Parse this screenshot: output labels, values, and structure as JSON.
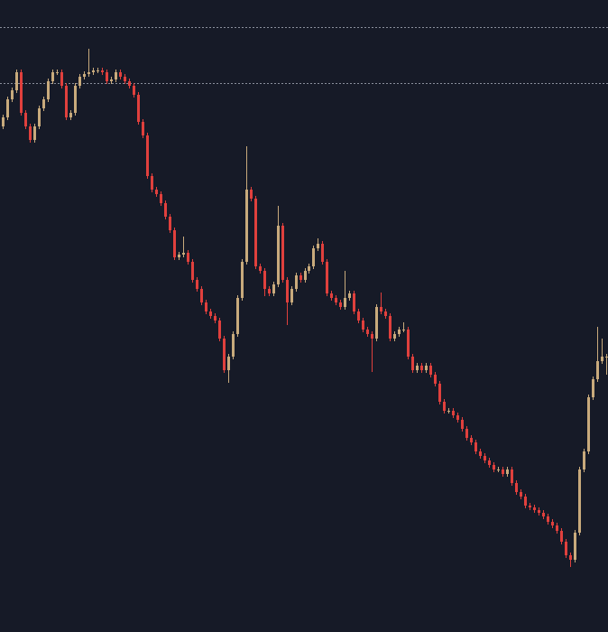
{
  "chart_data": {
    "type": "candlestick",
    "background": "#161a27",
    "up_color": "#c8aa7c",
    "down_color": "#e0403d",
    "hline_color": "#8a8f9c",
    "ylim": [
      0,
      700
    ],
    "hlines": [
      670,
      608
    ],
    "open": [
      560,
      570,
      590,
      600,
      620,
      575,
      560,
      545,
      560,
      580,
      590,
      610,
      620,
      620,
      605,
      570,
      575,
      605,
      615,
      618,
      620,
      622,
      622,
      620,
      610,
      612,
      620,
      615,
      610,
      605,
      595,
      565,
      550,
      505,
      490,
      485,
      475,
      460,
      445,
      415,
      418,
      420,
      410,
      390,
      380,
      365,
      355,
      350,
      345,
      325,
      290,
      305,
      330,
      370,
      410,
      490,
      480,
      405,
      400,
      380,
      375,
      385,
      450,
      390,
      365,
      380,
      395,
      390,
      400,
      405,
      425,
      430,
      410,
      375,
      370,
      365,
      360,
      370,
      375,
      355,
      345,
      335,
      330,
      325,
      360,
      355,
      350,
      325,
      330,
      335,
      335,
      305,
      290,
      295,
      290,
      295,
      285,
      275,
      255,
      245,
      245,
      240,
      235,
      225,
      215,
      210,
      200,
      195,
      190,
      185,
      180,
      180,
      175,
      180,
      165,
      155,
      150,
      140,
      138,
      135,
      132,
      128,
      122,
      118,
      112,
      100,
      85,
      80,
      110,
      180,
      200,
      260,
      280,
      300,
      305
    ],
    "high": [
      573,
      593,
      603,
      623,
      623,
      578,
      563,
      563,
      583,
      593,
      613,
      623,
      623,
      623,
      608,
      578,
      608,
      618,
      621,
      646,
      625,
      625,
      625,
      623,
      615,
      623,
      623,
      618,
      613,
      608,
      598,
      568,
      553,
      508,
      493,
      488,
      478,
      463,
      448,
      421,
      438,
      423,
      413,
      393,
      383,
      368,
      358,
      353,
      348,
      328,
      308,
      333,
      373,
      413,
      538,
      493,
      483,
      408,
      403,
      383,
      388,
      472,
      453,
      393,
      383,
      398,
      398,
      403,
      408,
      428,
      436,
      433,
      413,
      378,
      373,
      368,
      400,
      378,
      378,
      358,
      348,
      338,
      333,
      363,
      376,
      358,
      353,
      333,
      338,
      343,
      338,
      308,
      298,
      298,
      298,
      298,
      288,
      278,
      258,
      248,
      248,
      243,
      238,
      228,
      218,
      213,
      203,
      198,
      193,
      188,
      183,
      183,
      183,
      183,
      168,
      158,
      153,
      143,
      141,
      138,
      135,
      131,
      125,
      121,
      115,
      103,
      88,
      113,
      183,
      203,
      263,
      283,
      338,
      325,
      308
    ],
    "low": [
      557,
      567,
      587,
      597,
      572,
      557,
      542,
      542,
      557,
      577,
      587,
      607,
      617,
      602,
      567,
      567,
      572,
      602,
      612,
      615,
      617,
      619,
      617,
      607,
      607,
      609,
      612,
      607,
      602,
      592,
      562,
      547,
      502,
      487,
      482,
      472,
      457,
      442,
      412,
      412,
      415,
      407,
      387,
      377,
      362,
      352,
      347,
      342,
      322,
      287,
      276,
      302,
      327,
      367,
      407,
      477,
      402,
      397,
      372,
      372,
      372,
      382,
      387,
      340,
      362,
      377,
      387,
      387,
      397,
      402,
      422,
      407,
      372,
      367,
      362,
      357,
      357,
      367,
      352,
      342,
      332,
      327,
      288,
      322,
      352,
      347,
      322,
      322,
      327,
      332,
      302,
      287,
      287,
      287,
      287,
      282,
      272,
      252,
      242,
      242,
      237,
      232,
      222,
      212,
      207,
      197,
      192,
      187,
      182,
      177,
      177,
      172,
      172,
      162,
      152,
      147,
      137,
      135,
      132,
      129,
      125,
      119,
      115,
      109,
      97,
      82,
      72,
      77,
      107,
      177,
      197,
      257,
      277,
      297,
      285
    ],
    "close": [
      570,
      590,
      600,
      620,
      575,
      560,
      545,
      560,
      580,
      590,
      610,
      620,
      620,
      605,
      570,
      575,
      605,
      615,
      618,
      620,
      622,
      622,
      620,
      610,
      612,
      620,
      615,
      610,
      605,
      595,
      565,
      550,
      505,
      490,
      485,
      475,
      460,
      445,
      415,
      418,
      420,
      410,
      390,
      380,
      365,
      355,
      350,
      345,
      325,
      290,
      305,
      330,
      370,
      410,
      490,
      480,
      405,
      400,
      380,
      375,
      385,
      450,
      390,
      365,
      380,
      395,
      390,
      400,
      405,
      425,
      430,
      410,
      375,
      370,
      365,
      360,
      370,
      375,
      355,
      345,
      335,
      330,
      325,
      360,
      355,
      350,
      325,
      330,
      335,
      335,
      305,
      290,
      295,
      290,
      295,
      285,
      275,
      255,
      245,
      245,
      240,
      235,
      225,
      215,
      210,
      200,
      195,
      190,
      185,
      180,
      180,
      175,
      180,
      165,
      155,
      150,
      140,
      138,
      135,
      132,
      128,
      122,
      118,
      112,
      100,
      85,
      80,
      110,
      180,
      200,
      260,
      280,
      300,
      305,
      305
    ]
  }
}
